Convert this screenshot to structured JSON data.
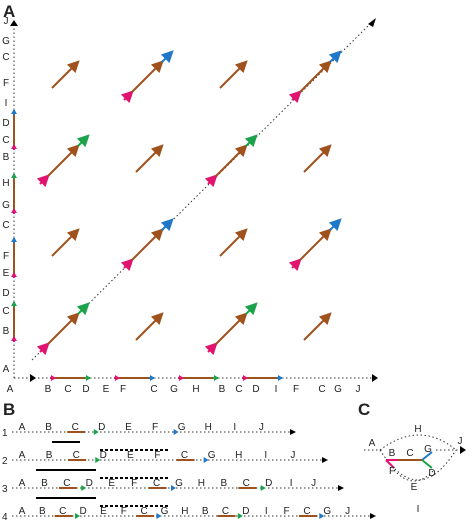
{
  "panels": {
    "a": "A",
    "b": "B",
    "c": "C"
  },
  "colors": {
    "A": "#000000",
    "B": "#e0136f",
    "C": "#a0521e",
    "D": "#1aa34a",
    "E": "#555555",
    "F": "#e0136f",
    "G": "#1f78c8",
    "H": "#555555",
    "I": "#555555",
    "J": "#000000",
    "bar": "#000000",
    "dot": "#333333"
  },
  "axis_x": [
    "A",
    "B",
    "C",
    "D",
    "E",
    "F",
    "C",
    "G",
    "H",
    "B",
    "C",
    "D",
    "I",
    "F",
    "C",
    "G",
    "J"
  ],
  "axis_y": [
    "A",
    "B",
    "C",
    "D",
    "E",
    "F",
    "C",
    "G",
    "H",
    "B",
    "C",
    "D",
    "I",
    "F",
    "C",
    "G",
    "J"
  ],
  "rows_b": [
    {
      "num": "1",
      "labels": [
        "A",
        "B",
        "C",
        "D",
        "E",
        "F",
        "G",
        "H",
        "I",
        "J"
      ]
    },
    {
      "num": "2",
      "labels": [
        "A",
        "B",
        "C",
        "D",
        "E",
        "F",
        "C",
        "G",
        "H",
        "I",
        "J"
      ]
    },
    {
      "num": "3",
      "labels": [
        "A",
        "B",
        "C",
        "D",
        "E",
        "F",
        "C",
        "G",
        "H",
        "B",
        "C",
        "D",
        "I",
        "J"
      ]
    },
    {
      "num": "4",
      "labels": [
        "A",
        "B",
        "C",
        "D",
        "E",
        "F",
        "C",
        "G",
        "H",
        "B",
        "C",
        "D",
        "I",
        "F",
        "C",
        "G",
        "J"
      ]
    }
  ],
  "graph_c": [
    "A",
    "B",
    "C",
    "G",
    "J",
    "F",
    "D",
    "E",
    "H",
    "I"
  ]
}
